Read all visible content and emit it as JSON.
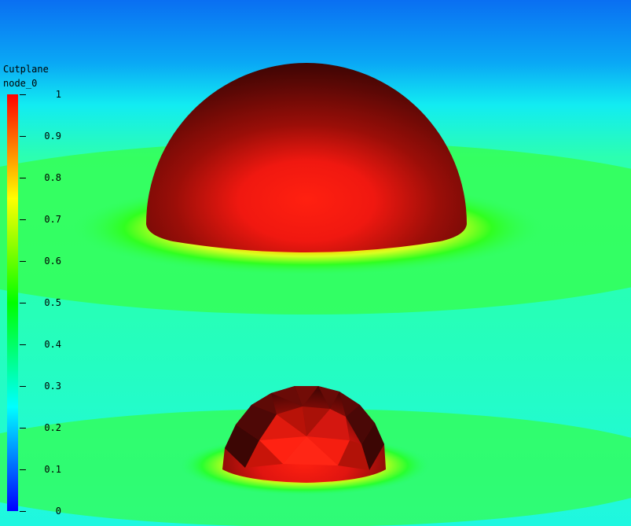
{
  "legend": {
    "title_line1": "Cutplane",
    "title_line2": "node_0",
    "ticks": [
      {
        "value": 1,
        "label": "1"
      },
      {
        "value": 0.9,
        "label": "0.9"
      },
      {
        "value": 0.8,
        "label": "0.8"
      },
      {
        "value": 0.7,
        "label": "0.7"
      },
      {
        "value": 0.6,
        "label": "0.6"
      },
      {
        "value": 0.5,
        "label": "0.5"
      },
      {
        "value": 0.4,
        "label": "0.4"
      },
      {
        "value": 0.3,
        "label": "0.3"
      },
      {
        "value": 0.2,
        "label": "0.2"
      },
      {
        "value": 0.1,
        "label": "0.1"
      },
      {
        "value": 0,
        "label": "0"
      }
    ],
    "range": [
      0,
      1
    ],
    "colormap": [
      "#0000ff",
      "#00ffff",
      "#00ff00",
      "#ffff00",
      "#ff0000"
    ]
  },
  "scene": {
    "background_top": "#0a74f0",
    "background_field": "#22ffcc",
    "sphere_color": "#ff1a10",
    "sphere_shadow": "#5a0a08"
  }
}
